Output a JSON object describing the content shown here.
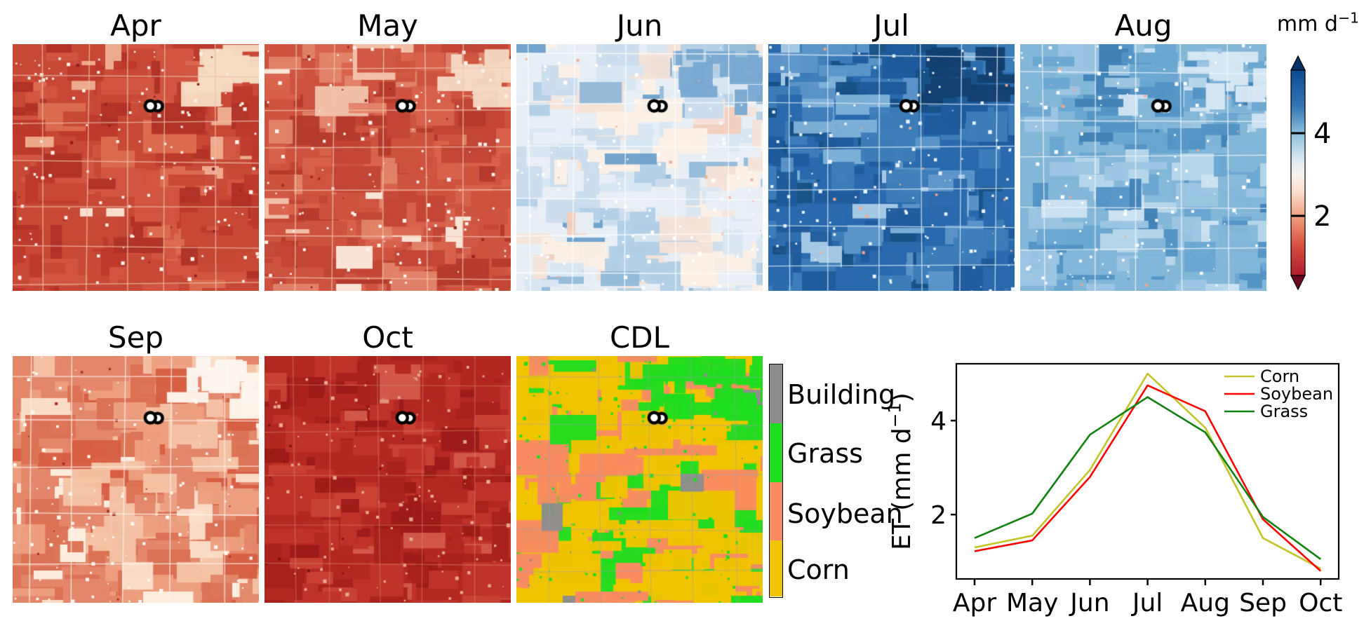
{
  "unit_label": "mm d⁻¹",
  "panels": [
    {
      "title": "Apr",
      "type": "et",
      "base": "#c84836",
      "grid": "#edbfa8",
      "speck": "#fdf1e7",
      "speck2": "#8e1f1a",
      "palette": [
        [
          "#c84836",
          3
        ],
        [
          "#bc392c",
          2.2
        ],
        [
          "#d15542",
          2
        ],
        [
          "#b03126",
          1.3
        ],
        [
          "#dc6b50",
          0.7
        ],
        [
          "#efae92",
          0.3
        ],
        [
          "#fae5d6",
          0.18
        ]
      ],
      "accent": {
        "color": "#f6dcc2",
        "count": 13
      }
    },
    {
      "title": "May",
      "type": "et",
      "base": "#ce5340",
      "grid": "#f0c6b0",
      "speck": "#fdf3ea",
      "speck2": "#962620",
      "palette": [
        [
          "#ce5340",
          3
        ],
        [
          "#c24535",
          2.2
        ],
        [
          "#d8624c",
          2
        ],
        [
          "#b53a2c",
          1.2
        ],
        [
          "#e2836a",
          0.8
        ],
        [
          "#f2c3ab",
          0.35
        ],
        [
          "#fbeade",
          0.2
        ]
      ],
      "accent": {
        "color": "#f5d8c4",
        "count": 10
      }
    },
    {
      "title": "Jun",
      "type": "et",
      "base": "#e8eef5",
      "grid": "#ffffff",
      "speck": "#ffffff",
      "speck2": "#efb096",
      "palette": [
        [
          "#e8eef5",
          3
        ],
        [
          "#d9e6f1",
          2.2
        ],
        [
          "#cbdded",
          1.8
        ],
        [
          "#f6e3d8",
          1.6
        ],
        [
          "#fcf0e6",
          1.4
        ],
        [
          "#b3cfe6",
          1.0
        ],
        [
          "#93bad9",
          0.5
        ],
        [
          "#6da0cb",
          0.35
        ],
        [
          "#f3cebc",
          0.5
        ]
      ],
      "accent": {
        "color": "#79a9d1",
        "count": 13
      }
    },
    {
      "title": "Jul",
      "type": "et",
      "base": "#2a69ad",
      "grid": "#d8e8f4",
      "speck": "#eaf2f9",
      "speck2": "#f2a98c",
      "palette": [
        [
          "#2a69ad",
          3
        ],
        [
          "#1f5b9c",
          2.4
        ],
        [
          "#3d7db9",
          2.2
        ],
        [
          "#175084",
          1.4
        ],
        [
          "#5c95c9",
          1.1
        ],
        [
          "#7fb2d8",
          0.5
        ],
        [
          "#a9cce6",
          0.3
        ]
      ],
      "accent": {
        "color": "#12406f",
        "count": 14
      }
    },
    {
      "title": "Aug",
      "type": "et",
      "base": "#83b7d8",
      "grid": "#f2f7fb",
      "speck": "#fbfdfe",
      "speck2": "#f2a98c",
      "palette": [
        [
          "#83b7d8",
          3
        ],
        [
          "#6aa7d0",
          2.4
        ],
        [
          "#9cc6e2",
          2.2
        ],
        [
          "#5394c5",
          1.4
        ],
        [
          "#b7d7ea",
          1.2
        ],
        [
          "#4181b6",
          0.6
        ],
        [
          "#cfe3f1",
          0.6
        ]
      ],
      "accent": {
        "color": "#d7e8f3",
        "count": 12
      }
    },
    {
      "title": "Sep",
      "type": "et",
      "base": "#e3866a",
      "grid": "#fdf3ea",
      "speck": "#fef8f1",
      "speck2": "#a62b22",
      "palette": [
        [
          "#e3866a",
          3
        ],
        [
          "#dc7154",
          2.4
        ],
        [
          "#ec9f80",
          2.2
        ],
        [
          "#f5c3a6",
          1.8
        ],
        [
          "#d65e43",
          1.4
        ],
        [
          "#fbdfca",
          1.2
        ],
        [
          "#fdf0e3",
          0.6
        ]
      ],
      "accent": {
        "color": "#fdf6ee",
        "count": 14
      }
    },
    {
      "title": "Oct",
      "type": "et",
      "base": "#b32822",
      "grid": "#d98a74",
      "speck": "#e8a88f",
      "speck2": "#7c110f",
      "palette": [
        [
          "#b32822",
          3
        ],
        [
          "#a9211d",
          2.4
        ],
        [
          "#bf332a",
          2.2
        ],
        [
          "#9c1b18",
          1.4
        ],
        [
          "#c84234",
          0.8
        ],
        [
          "#d1584a",
          0.4
        ],
        [
          "#e09579",
          0.12
        ]
      ],
      "accent": null
    },
    {
      "title": "CDL",
      "type": "cdl",
      "base": "#f0c400",
      "grid": "#a0a0b0",
      "speck": "#1fdd1f",
      "speck2": "#8c8c8c",
      "palette": [
        [
          "#f0c400",
          4.4
        ],
        [
          "#f98a62",
          3.4
        ],
        [
          "#1fdd1f",
          1.5
        ],
        [
          "#8c8c8c",
          0.38
        ]
      ],
      "accent": {
        "color": "#1fdd1f",
        "count": 22
      }
    }
  ],
  "site_marker": {
    "shape": "double-circle",
    "fill": "#ffffff",
    "stroke": "#000000",
    "rel_x": 0.575,
    "rel_y": 0.25
  },
  "colorbar": {
    "label": "mm d⁻¹",
    "ticks": [
      {
        "label": "4",
        "y": 190
      },
      {
        "label": "2",
        "y": 308
      }
    ],
    "top_arrow_color": "#0a3168",
    "bottom_arrow_color": "#6b0a1e",
    "stops": [
      [
        0,
        "#0a4a90"
      ],
      [
        0.18,
        "#3577b5"
      ],
      [
        0.31,
        "#8fc0dc"
      ],
      [
        0.44,
        "#ddeaf3"
      ],
      [
        0.51,
        "#f9f2ee"
      ],
      [
        0.6,
        "#fadcc8"
      ],
      [
        0.71,
        "#f0a081"
      ],
      [
        0.85,
        "#d75140"
      ],
      [
        1,
        "#b01c2e"
      ]
    ]
  },
  "cdl_legend": {
    "items": [
      {
        "label": "Building",
        "color": "#8c8c8c"
      },
      {
        "label": "Grass",
        "color": "#1fdd1f"
      },
      {
        "label": "Soybean",
        "color": "#f98a62"
      },
      {
        "label": "Corn",
        "color": "#f0c400"
      }
    ]
  },
  "chart_data": {
    "type": "line",
    "x": [
      "Apr",
      "May",
      "Jun",
      "Jul",
      "Aug",
      "Sep",
      "Oct"
    ],
    "series": [
      {
        "name": "Corn",
        "color": "#c3c32a",
        "values": [
          1.3,
          1.55,
          2.95,
          5.0,
          3.85,
          1.5,
          0.85
        ]
      },
      {
        "name": "Soybean",
        "color": "#ff0000",
        "values": [
          1.22,
          1.45,
          2.8,
          4.75,
          4.2,
          1.9,
          0.8
        ]
      },
      {
        "name": "Grass",
        "color": "#0f820f",
        "values": [
          1.5,
          2.02,
          3.7,
          4.5,
          3.75,
          1.95,
          1.05
        ]
      }
    ],
    "ylabel": "ET (mm d⁻¹)",
    "yticks": [
      2,
      4
    ],
    "ylim": [
      0.63,
      5.21
    ],
    "xlabel": "",
    "grid": false,
    "legend_position": "upper right"
  }
}
